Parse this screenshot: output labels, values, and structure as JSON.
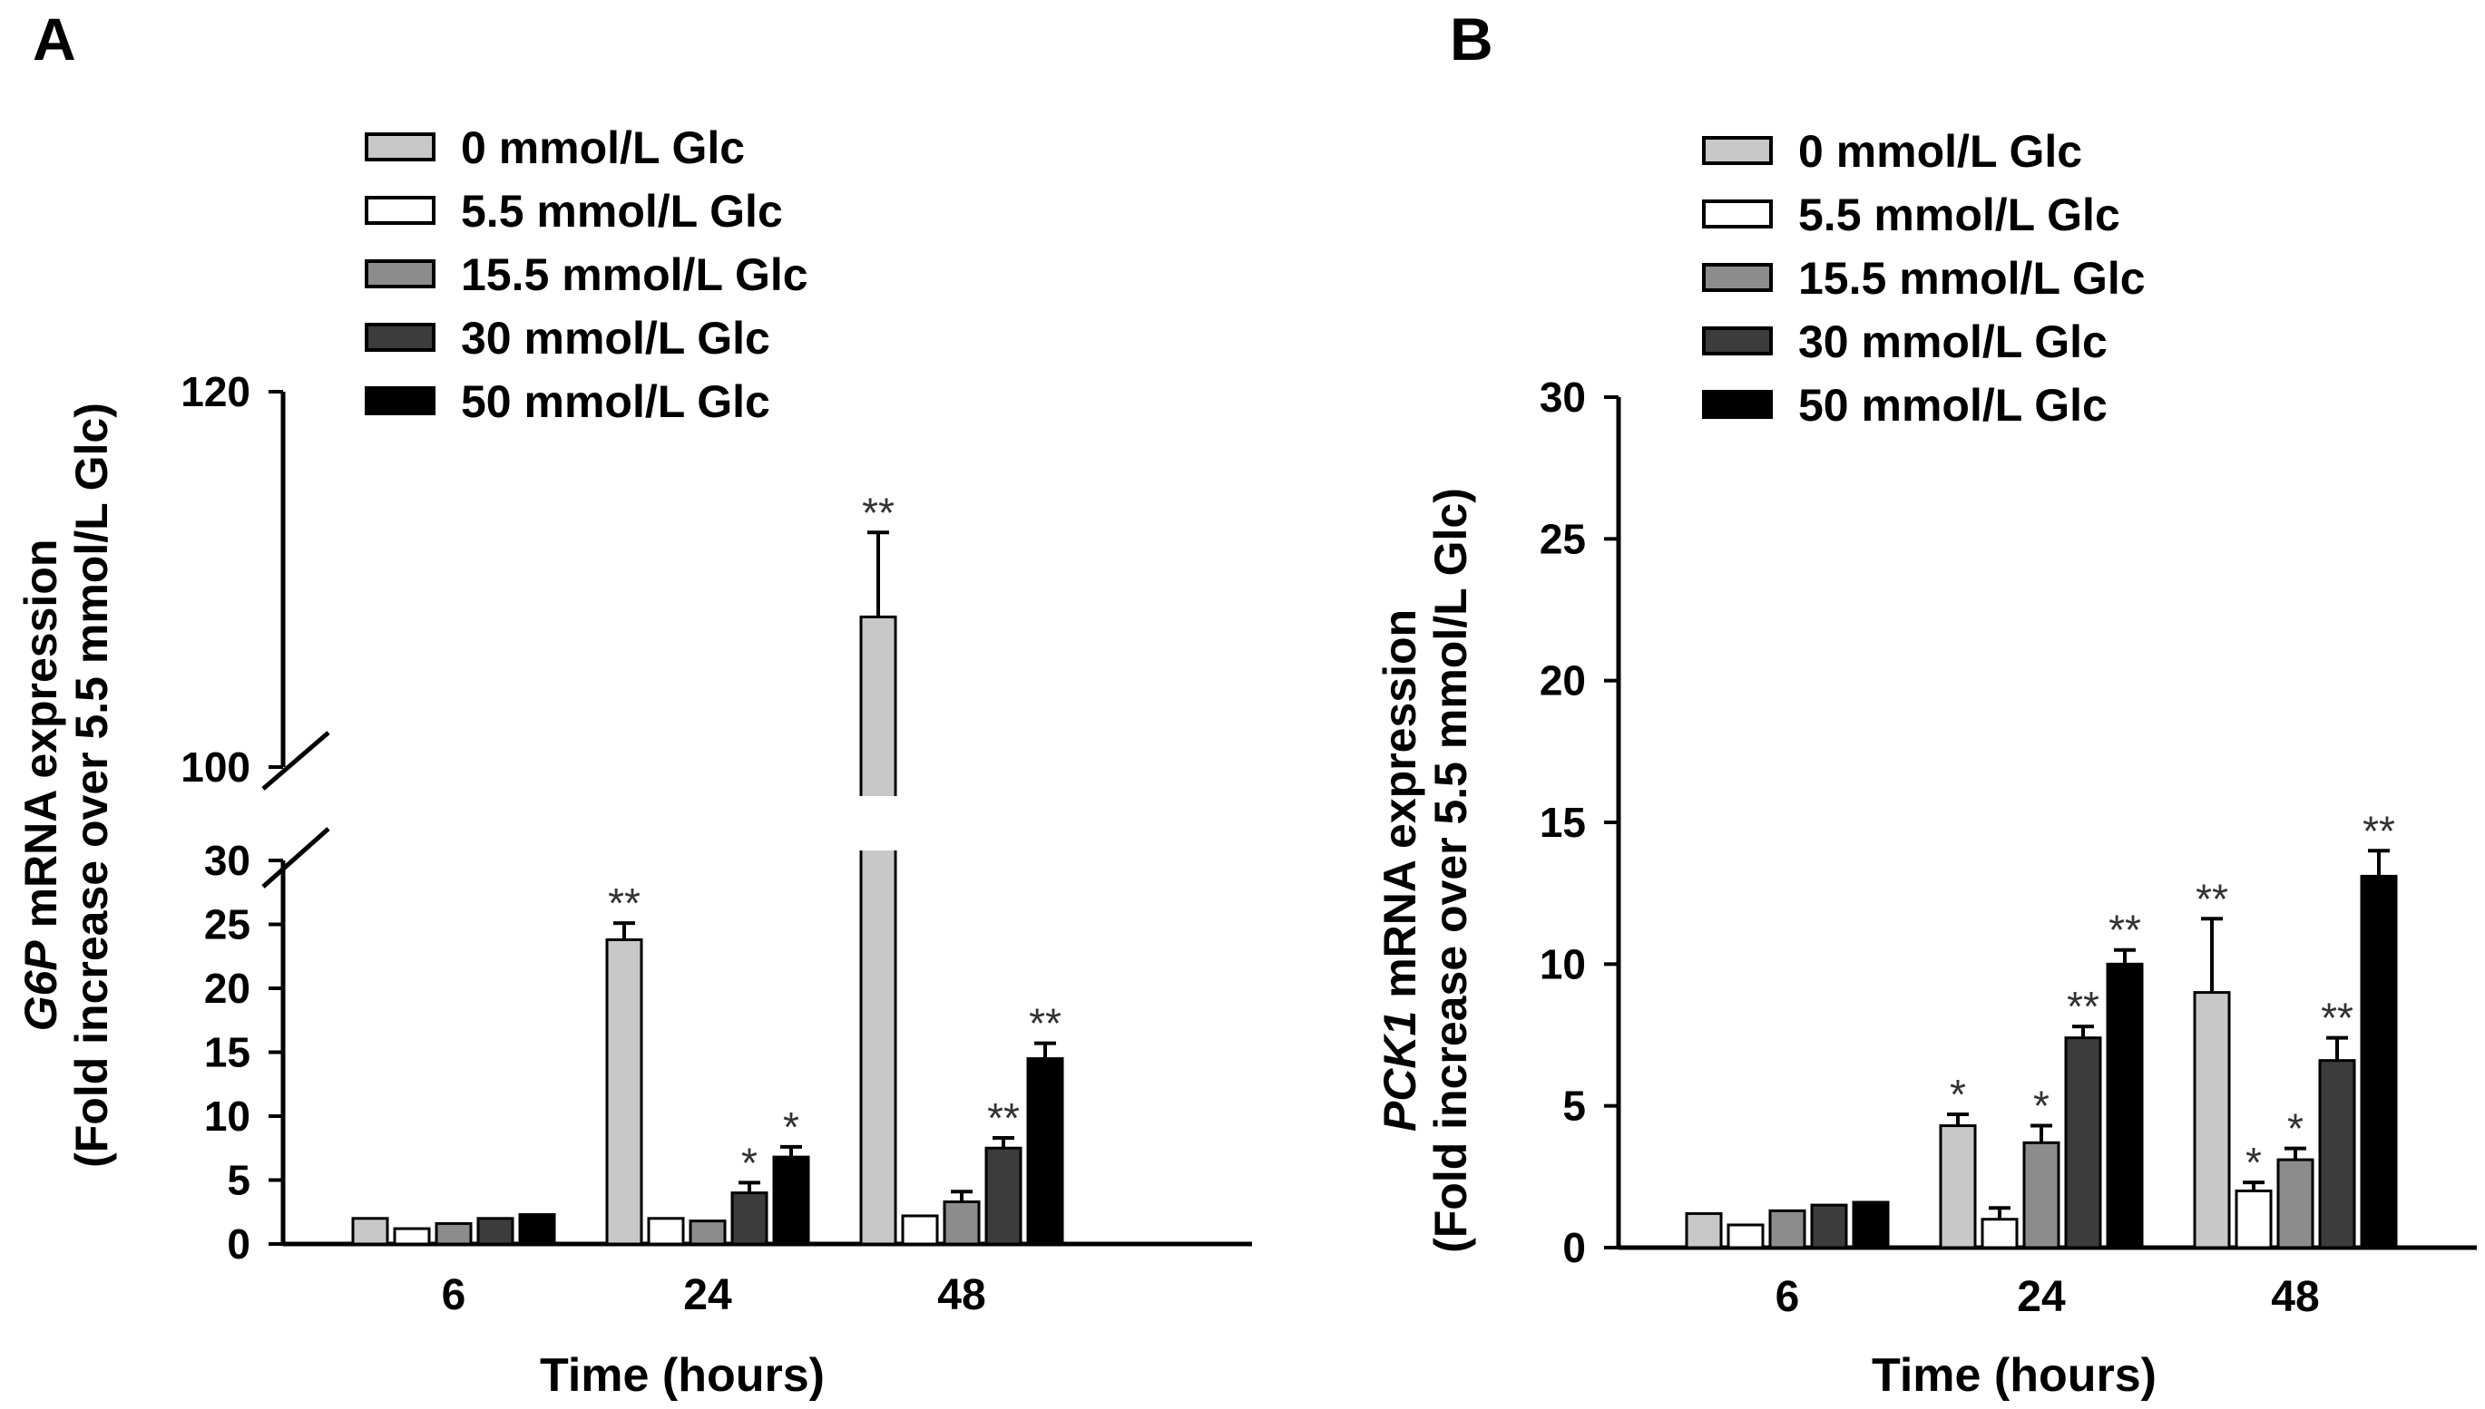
{
  "colors": {
    "series": [
      "#c8c8c8",
      "#ffffff",
      "#8c8c8c",
      "#3c3c3c",
      "#000000"
    ],
    "axis": "#000000",
    "sig": "#333333"
  },
  "chart_data": [
    {
      "panel": "A",
      "type": "bar",
      "x_title": "Time (hours)",
      "y_title_italic": "G6P",
      "y_title_rest": " mRNA expression",
      "y_title_line2": "(Fold increase over 5.5 mmol/L Glc)",
      "categories": [
        "6",
        "24",
        "48"
      ],
      "axis_break": true,
      "ylim_lower": [
        0,
        30
      ],
      "yticks_lower": [
        "0",
        "5",
        "10",
        "15",
        "20",
        "25",
        "30"
      ],
      "ylim_upper": [
        100,
        120
      ],
      "yticks_upper": [
        "100",
        "120"
      ],
      "legend": [
        "0 mmol/L Glc",
        "5.5 mmol/L Glc",
        "15.5 mmol/L Glc",
        "30  mmol/L Glc",
        "50  mmol/L Glc"
      ],
      "series": [
        {
          "name": "0 mmol/L Glc",
          "values": [
            2,
            23.8,
            108
          ],
          "errors": [
            0,
            1.3,
            4.5
          ],
          "sig": [
            "",
            "**",
            "**"
          ]
        },
        {
          "name": "5.5 mmol/L Glc",
          "values": [
            1.2,
            2,
            2.2
          ],
          "errors": [
            0,
            0,
            0
          ],
          "sig": [
            "",
            "",
            ""
          ]
        },
        {
          "name": "15.5 mmol/L Glc",
          "values": [
            1.6,
            1.8,
            3.3
          ],
          "errors": [
            0,
            0,
            0.8
          ],
          "sig": [
            "",
            "",
            ""
          ]
        },
        {
          "name": "30  mmol/L Glc",
          "values": [
            2,
            4,
            7.5
          ],
          "errors": [
            0,
            0.8,
            0.8
          ],
          "sig": [
            "",
            "*",
            "**"
          ]
        },
        {
          "name": "50  mmol/L Glc",
          "values": [
            2.3,
            6.8,
            14.5
          ],
          "errors": [
            0,
            0.8,
            1.2
          ],
          "sig": [
            "",
            "*",
            "**"
          ]
        }
      ]
    },
    {
      "panel": "B",
      "type": "bar",
      "x_title": "Time (hours)",
      "y_title_italic": "PCK1",
      "y_title_rest": " mRNA  expression",
      "y_title_line2": "(Fold increase over 5.5 mmol/L Glc)",
      "categories": [
        "6",
        "24",
        "48"
      ],
      "ylim": [
        0,
        30
      ],
      "yticks": [
        "0",
        "5",
        "10",
        "15",
        "20",
        "25",
        "30"
      ],
      "legend": [
        "0 mmol/L Glc",
        "5.5 mmol/L Glc",
        "15.5 mmol/L Glc",
        "30  mmol/L Glc",
        "50  mmol/L Glc"
      ],
      "series": [
        {
          "name": "0 mmol/L Glc",
          "values": [
            1.2,
            4.3,
            9
          ],
          "errors": [
            0,
            0.4,
            2.6
          ],
          "sig": [
            "",
            "*",
            "**"
          ]
        },
        {
          "name": "5.5 mmol/L Glc",
          "values": [
            0.8,
            1,
            2
          ],
          "errors": [
            0,
            0.4,
            0.3
          ],
          "sig": [
            "",
            "",
            "*"
          ]
        },
        {
          "name": "15.5 mmol/L Glc",
          "values": [
            1.3,
            3.7,
            3.1
          ],
          "errors": [
            0,
            0.6,
            0.4
          ],
          "sig": [
            "",
            "*",
            "*"
          ]
        },
        {
          "name": "30  mmol/L Glc",
          "values": [
            1.5,
            7.4,
            6.6
          ],
          "errors": [
            0,
            0.4,
            0.8
          ],
          "sig": [
            "",
            "**",
            "**"
          ]
        },
        {
          "name": "50  mmol/L Glc",
          "values": [
            1.6,
            10,
            13.1
          ],
          "errors": [
            0,
            0.5,
            0.9
          ],
          "sig": [
            "",
            "**",
            "**"
          ]
        }
      ]
    }
  ]
}
